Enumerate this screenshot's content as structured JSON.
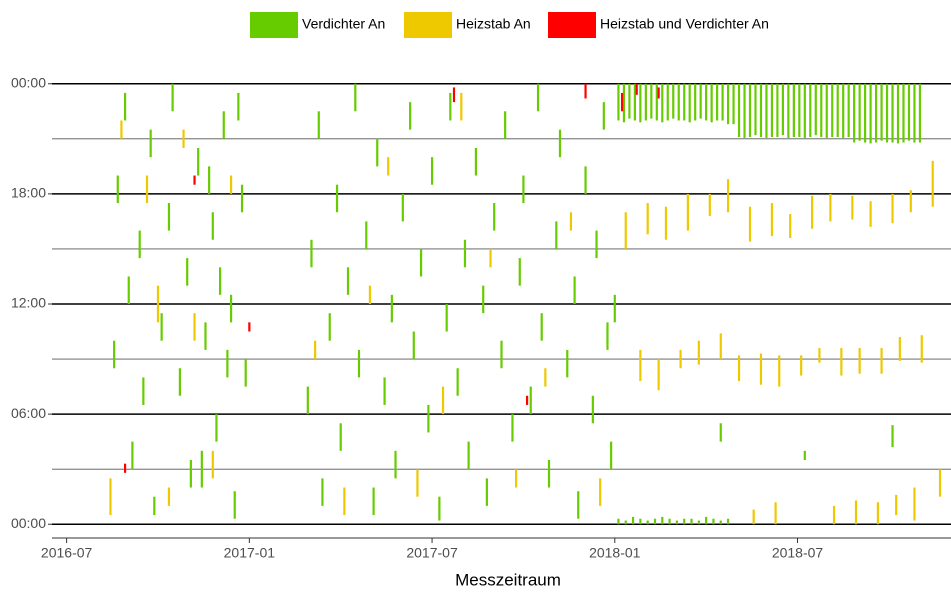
{
  "chart_data": {
    "type": "timeline",
    "xlabel": "Messzeitraum",
    "legend": "top",
    "xlim": [
      2016.46,
      2018.92
    ],
    "xticks": [
      {
        "value": 2016.5,
        "label": "2016-07"
      },
      {
        "value": 2017.0,
        "label": "2017-01"
      },
      {
        "value": 2017.5,
        "label": "2017-07"
      },
      {
        "value": 2018.0,
        "label": "2018-01"
      },
      {
        "value": 2018.5,
        "label": "2018-07"
      }
    ],
    "ylim": [
      -0.75,
      24.75
    ],
    "yticks": [
      {
        "value": 0,
        "label": "00:00"
      },
      {
        "value": 6,
        "label": "06:00"
      },
      {
        "value": 12,
        "label": "12:00"
      },
      {
        "value": 18,
        "label": "18:00"
      },
      {
        "value": 24,
        "label": "00:00"
      }
    ],
    "minor_yticks": [
      3,
      9,
      15,
      21
    ],
    "series": [
      {
        "name": "Verdichter An",
        "color": "#66cc00",
        "x": [
          2016.63,
          2016.64,
          2016.66,
          2016.67,
          2016.68,
          2016.7,
          2016.71,
          2016.73,
          2016.74,
          2016.76,
          2016.78,
          2016.79,
          2016.81,
          2016.83,
          2016.84,
          2016.86,
          2016.87,
          2016.88,
          2016.89,
          2016.9,
          2016.91,
          2016.92,
          2016.93,
          2016.94,
          2016.95,
          2016.96,
          2016.97,
          2016.98,
          2016.99,
          2017.16,
          2017.17,
          2017.19,
          2017.2,
          2017.22,
          2017.24,
          2017.25,
          2017.27,
          2017.29,
          2017.3,
          2017.32,
          2017.34,
          2017.35,
          2017.37,
          2017.39,
          2017.4,
          2017.42,
          2017.44,
          2017.45,
          2017.47,
          2017.49,
          2017.5,
          2017.52,
          2017.54,
          2017.55,
          2017.57,
          2017.59,
          2017.6,
          2017.62,
          2017.64,
          2017.65,
          2017.67,
          2017.69,
          2017.7,
          2017.72,
          2017.74,
          2017.75,
          2017.77,
          2017.79,
          2017.8,
          2017.82,
          2017.84,
          2017.85,
          2017.87,
          2017.89,
          2017.9,
          2017.92,
          2017.94,
          2017.95,
          2017.97,
          2017.98,
          2017.99,
          2018.0,
          2018.29,
          2018.52,
          2018.76,
          2018.01,
          2018.025,
          2018.04,
          2018.055,
          2018.07,
          2018.085,
          2018.1,
          2018.115,
          2018.13,
          2018.145,
          2018.16,
          2018.175,
          2018.19,
          2018.205,
          2018.22,
          2018.235,
          2018.25,
          2018.265,
          2018.28,
          2018.295,
          2018.31,
          2018.325,
          2018.34,
          2018.355,
          2018.37,
          2018.385,
          2018.4,
          2018.415,
          2018.43,
          2018.445,
          2018.46,
          2018.475,
          2018.49,
          2018.505,
          2018.52,
          2018.535,
          2018.55,
          2018.565,
          2018.58,
          2018.595,
          2018.61,
          2018.625,
          2018.64,
          2018.655,
          2018.67,
          2018.685,
          2018.7,
          2018.715,
          2018.73,
          2018.745,
          2018.76,
          2018.775,
          2018.79,
          2018.805,
          2018.82,
          2018.835,
          2018.01,
          2018.03,
          2018.05,
          2018.07,
          2018.09,
          2018.11,
          2018.13,
          2018.15,
          2018.17,
          2018.19,
          2018.21,
          2018.23,
          2018.25,
          2018.27,
          2018.29,
          2018.31
        ],
        "start": [
          8.5,
          17.5,
          22,
          12,
          3,
          14.5,
          6.5,
          20,
          0.5,
          10,
          16,
          22.5,
          7,
          13,
          2,
          19,
          2,
          9.5,
          18,
          15.5,
          4.5,
          12.5,
          21,
          8,
          11,
          0.3,
          22,
          17,
          7.5,
          6,
          14,
          21,
          1,
          10,
          17,
          4,
          12.5,
          22.5,
          8,
          15,
          0.5,
          19.5,
          6.5,
          11,
          2.5,
          16.5,
          21.5,
          9,
          13.5,
          5,
          18.5,
          0.2,
          10.5,
          22,
          7,
          14,
          3,
          19,
          11.5,
          1,
          16,
          8.5,
          21,
          4.5,
          13,
          17.5,
          6,
          22.5,
          10,
          2,
          15,
          20,
          8,
          12,
          0.3,
          18,
          5.5,
          14.5,
          21.5,
          9.5,
          3,
          11,
          4.5,
          3.5,
          4.2,
          22,
          21.9,
          22.1,
          22,
          21.9,
          22,
          22.1,
          22,
          21.9,
          22,
          22.1,
          22,
          22,
          21.9,
          22,
          22.1,
          22,
          21.9,
          22,
          22,
          21.8,
          21.8,
          21.1,
          21.05,
          21.1,
          21.2,
          21.1,
          21.05,
          21.1,
          21.1,
          21.2,
          21.05,
          21.1,
          21.1,
          21.05,
          21.1,
          21.2,
          21.1,
          21.05,
          21.1,
          21.1,
          21.05,
          21.1,
          20.8,
          20.9,
          20.8,
          20.75,
          20.8,
          20.9,
          20.8,
          20.8,
          20.75,
          20.8,
          20.9,
          20.8,
          20.8,
          0,
          0,
          0,
          0,
          0,
          0,
          0,
          0,
          0,
          0,
          0,
          0,
          0,
          0,
          0,
          0
        ],
        "end": [
          10,
          19,
          23.5,
          13.5,
          4.5,
          16,
          8,
          21.5,
          1.5,
          11.5,
          17.5,
          24,
          8.5,
          14.5,
          3.5,
          20.5,
          4,
          11,
          19.5,
          17,
          6,
          14,
          22.5,
          9.5,
          12.5,
          1.8,
          23.5,
          18.5,
          9,
          7.5,
          15.5,
          22.5,
          2.5,
          11.5,
          18.5,
          5.5,
          14,
          24,
          9.5,
          16.5,
          2,
          21,
          8,
          12.5,
          4,
          18,
          23,
          10.5,
          15,
          6.5,
          20,
          1.5,
          12,
          23.5,
          8.5,
          15.5,
          4.5,
          20.5,
          13,
          2.5,
          17.5,
          10,
          22.5,
          6,
          14.5,
          19,
          7.5,
          24,
          11.5,
          3.5,
          16.5,
          21.5,
          9.5,
          13.5,
          1.8,
          19.5,
          7,
          16,
          23,
          11,
          4.5,
          12.5,
          5.5,
          4,
          5.4,
          24,
          24,
          24,
          24,
          24,
          24,
          24,
          24,
          24,
          24,
          24,
          24,
          24,
          24,
          24,
          24,
          24,
          24,
          24,
          24,
          24,
          24,
          24,
          24,
          24,
          24,
          24,
          24,
          24,
          24,
          24,
          24,
          24,
          24,
          24,
          24,
          24,
          24,
          24,
          24,
          24,
          24,
          24,
          24,
          24,
          24,
          24,
          24,
          24,
          24,
          24,
          24,
          24,
          24,
          24,
          24,
          0.3,
          0.2,
          0.4,
          0.3,
          0.2,
          0.3,
          0.4,
          0.3,
          0.2,
          0.3,
          0.3,
          0.2,
          0.4,
          0.3,
          0.2,
          0.3
        ]
      },
      {
        "name": "Heizstab An",
        "color": "#eec900",
        "x": [
          2016.62,
          2016.65,
          2016.72,
          2016.75,
          2016.78,
          2016.82,
          2016.85,
          2016.9,
          2016.95,
          2017.18,
          2017.26,
          2017.33,
          2017.38,
          2017.46,
          2017.53,
          2017.58,
          2017.66,
          2017.73,
          2017.81,
          2017.88,
          2017.96,
          2018.03,
          2018.09,
          2018.14,
          2018.2,
          2018.26,
          2018.31,
          2018.37,
          2018.43,
          2018.48,
          2018.54,
          2018.59,
          2018.65,
          2018.7,
          2018.76,
          2018.81,
          2018.87,
          2018.07,
          2018.12,
          2018.18,
          2018.23,
          2018.29,
          2018.34,
          2018.4,
          2018.45,
          2018.51,
          2018.56,
          2018.62,
          2018.67,
          2018.73,
          2018.78,
          2018.84,
          2018.38,
          2018.44,
          2018.6,
          2018.66,
          2018.72,
          2018.77,
          2018.82,
          2018.89
        ],
        "start": [
          0.5,
          21,
          17.5,
          11,
          1,
          20.5,
          10,
          2.5,
          18,
          9,
          0.5,
          12,
          19,
          1.5,
          6,
          22,
          14,
          2,
          7.5,
          16,
          1,
          15,
          15.8,
          15.5,
          16,
          16.8,
          17,
          15.4,
          15.7,
          15.6,
          16.1,
          16.5,
          16.6,
          16.2,
          16.4,
          17,
          17.3,
          7.8,
          7.3,
          8.5,
          8.7,
          9,
          7.8,
          7.6,
          7.5,
          8.1,
          8.8,
          8.1,
          8.2,
          8.2,
          8.9,
          8.8,
          0,
          0,
          0,
          0,
          0,
          0.5,
          0.2,
          1.5
        ],
        "end": [
          2.5,
          22,
          19,
          13,
          2,
          21.5,
          11.5,
          4,
          19,
          10,
          2,
          13,
          20,
          3,
          7.5,
          23.5,
          15,
          3,
          8.5,
          17,
          2.5,
          17,
          17.5,
          17.3,
          18,
          18,
          18.8,
          17.3,
          17.5,
          16.9,
          17.9,
          18,
          17.9,
          17.6,
          18,
          18.2,
          19.8,
          9.5,
          9,
          9.5,
          10,
          10.4,
          9.2,
          9.3,
          9.2,
          9.2,
          9.6,
          9.6,
          9.6,
          9.6,
          10.2,
          10.3,
          0.8,
          1.2,
          1,
          1.3,
          1.2,
          1.6,
          2,
          3
        ]
      },
      {
        "name": "Heizstab und Verdichter An",
        "color": "#ff0000",
        "x": [
          2016.66,
          2016.85,
          2017.0,
          2017.56,
          2017.76,
          2017.92,
          2018.02,
          2018.06,
          2018.12
        ],
        "start": [
          2.8,
          18.5,
          10.5,
          23,
          6.5,
          23.2,
          22.5,
          23.4,
          23.2
        ],
        "end": [
          3.3,
          19,
          11,
          23.8,
          7,
          24,
          23.5,
          24,
          23.8
        ]
      }
    ]
  }
}
